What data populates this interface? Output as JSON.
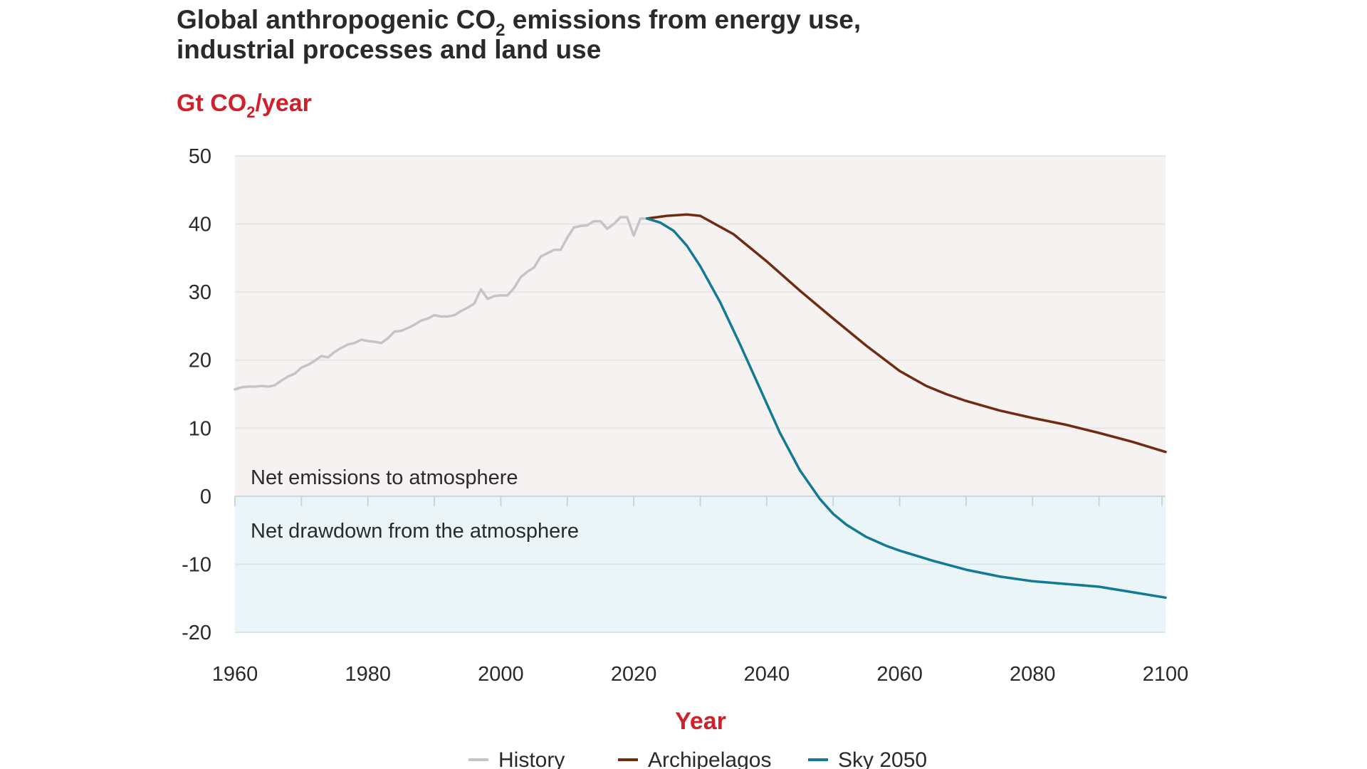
{
  "chart_data": {
    "type": "line",
    "title_line1": "Global anthropogenic CO",
    "title_sub": "2",
    "title_line1_rest": " emissions from energy use,",
    "title_line2": "industrial processes and land use",
    "ylabel_pre": "Gt CO",
    "ylabel_sub": "2",
    "ylabel_post": "/year",
    "xlabel": "Year",
    "xlim": [
      1960,
      2100
    ],
    "ylim": [
      -20,
      50
    ],
    "xticks": [
      "1960",
      "1980",
      "2000",
      "2020",
      "2040",
      "2060",
      "2080",
      "2100"
    ],
    "yticks": [
      "50",
      "40",
      "30",
      "20",
      "10",
      "0",
      "-10",
      "-20"
    ],
    "grid": true,
    "legend_position": "bottom",
    "annotations": {
      "positive_region": "Net emissions to atmosphere",
      "negative_region": "Net drawdown from the atmosphere"
    },
    "region_colors": {
      "positive": "#f7f2f2",
      "negative": "#ebf5f8"
    },
    "series": [
      {
        "name": "History",
        "color": "#c4c4c4",
        "x": [
          1960,
          1961,
          1962,
          1963,
          1964,
          1965,
          1966,
          1967,
          1968,
          1969,
          1970,
          1971,
          1972,
          1973,
          1974,
          1975,
          1976,
          1977,
          1978,
          1979,
          1980,
          1981,
          1982,
          1983,
          1984,
          1985,
          1986,
          1987,
          1988,
          1989,
          1990,
          1991,
          1992,
          1993,
          1994,
          1995,
          1996,
          1997,
          1998,
          1999,
          2000,
          2001,
          2002,
          2003,
          2004,
          2005,
          2006,
          2007,
          2008,
          2009,
          2010,
          2011,
          2012,
          2013,
          2014,
          2015,
          2016,
          2017,
          2018,
          2019,
          2020,
          2021,
          2022
        ],
        "y": [
          15.7,
          16.0,
          16.1,
          16.1,
          16.2,
          16.1,
          16.3,
          17.0,
          17.6,
          18.0,
          18.9,
          19.3,
          19.9,
          20.6,
          20.4,
          21.2,
          21.8,
          22.3,
          22.5,
          23.0,
          22.8,
          22.7,
          22.5,
          23.2,
          24.2,
          24.3,
          24.7,
          25.2,
          25.8,
          26.1,
          26.6,
          26.4,
          26.4,
          26.6,
          27.2,
          27.7,
          28.3,
          30.4,
          29.0,
          29.4,
          29.5,
          29.5,
          30.6,
          32.2,
          33.0,
          33.6,
          35.2,
          35.7,
          36.2,
          36.2,
          38.0,
          39.5,
          39.7,
          39.8,
          40.4,
          40.4,
          39.3,
          40.0,
          41.0,
          41.0,
          38.3,
          40.8,
          40.8
        ]
      },
      {
        "name": "Archipelagos",
        "color": "#6e2c12",
        "x": [
          2022,
          2025,
          2028,
          2030,
          2035,
          2040,
          2045,
          2050,
          2055,
          2060,
          2064,
          2067,
          2070,
          2075,
          2080,
          2085,
          2090,
          2095,
          2100
        ],
        "y": [
          40.8,
          41.2,
          41.4,
          41.2,
          38.5,
          34.5,
          30.2,
          26.1,
          22.1,
          18.4,
          16.2,
          15.0,
          14.0,
          12.6,
          11.5,
          10.5,
          9.3,
          8.0,
          6.5
        ]
      },
      {
        "name": "Sky 2050",
        "color": "#137a96",
        "x": [
          2022,
          2024,
          2026,
          2028,
          2030,
          2033,
          2036,
          2039,
          2042,
          2045,
          2048,
          2050,
          2052,
          2055,
          2058,
          2060,
          2065,
          2070,
          2075,
          2080,
          2085,
          2090,
          2095,
          2100
        ],
        "y": [
          40.8,
          40.2,
          39.0,
          36.8,
          33.8,
          28.5,
          22.3,
          15.8,
          9.3,
          3.8,
          -0.4,
          -2.6,
          -4.2,
          -6.0,
          -7.3,
          -8.0,
          -9.5,
          -10.8,
          -11.8,
          -12.5,
          -12.9,
          -13.3,
          -14.1,
          -14.9
        ]
      }
    ]
  }
}
